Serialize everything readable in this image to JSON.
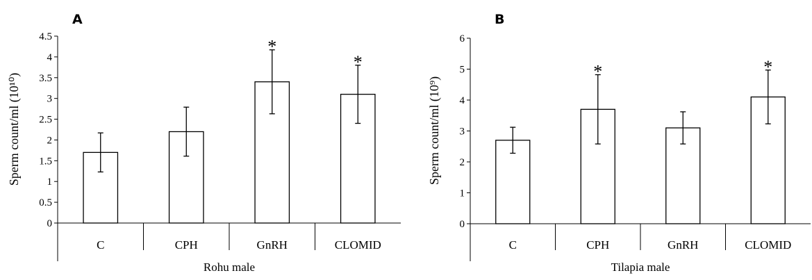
{
  "chart_data": [
    {
      "type": "bar",
      "panel_label": "A",
      "group_label": "Rohu male",
      "ylabel": "Sperm count/ml (10¹⁰)",
      "ylim": [
        0,
        4.5
      ],
      "yticks": [
        "0",
        "0.5",
        "1",
        "1.5",
        "2",
        "2.5",
        "3",
        "3.5",
        "4",
        "4.5"
      ],
      "categories": [
        "C",
        "CPH",
        "GnRH",
        "CLOMID"
      ],
      "values": [
        1.7,
        2.2,
        3.4,
        3.1
      ],
      "errors": [
        0.47,
        0.59,
        0.77,
        0.7
      ],
      "significance": [
        "",
        "",
        "*",
        "*"
      ],
      "grid": false,
      "colors": {
        "bar_fill": "#ffffff",
        "bar_stroke": "#000000"
      }
    },
    {
      "type": "bar",
      "panel_label": "B",
      "group_label": "Tilapia male",
      "ylabel": "Sperm count/ml (10⁹)",
      "ylim": [
        0,
        6
      ],
      "yticks": [
        "0",
        "1",
        "2",
        "3",
        "4",
        "5",
        "6"
      ],
      "categories": [
        "C",
        "CPH",
        "GnRH",
        "CLOMID"
      ],
      "values": [
        2.7,
        3.7,
        3.1,
        4.1
      ],
      "errors": [
        0.42,
        1.12,
        0.52,
        0.87
      ],
      "significance": [
        "",
        "*",
        "",
        "*"
      ],
      "grid": false,
      "colors": {
        "bar_fill": "#ffffff",
        "bar_stroke": "#000000"
      }
    }
  ]
}
